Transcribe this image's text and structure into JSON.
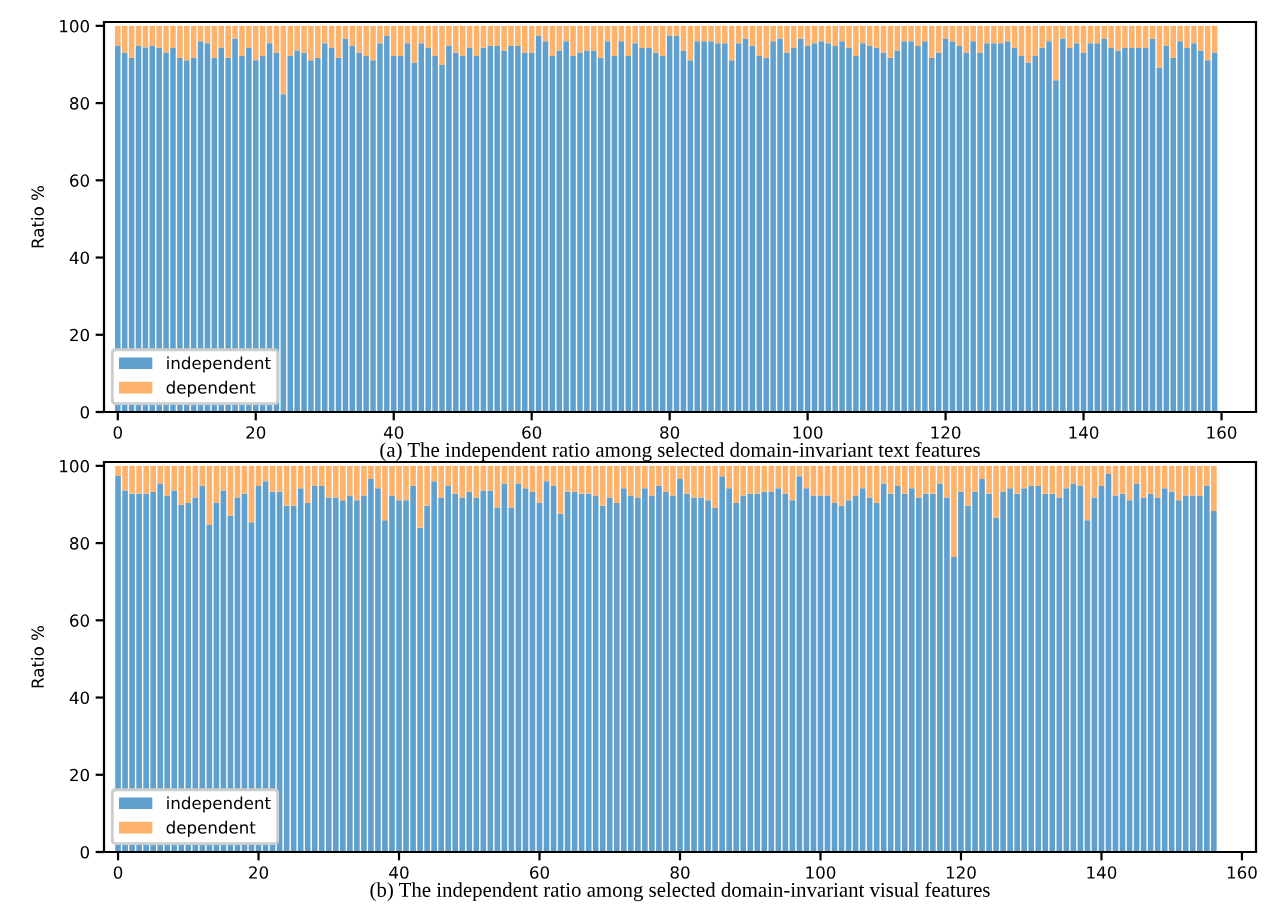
{
  "chart_data": [
    {
      "type": "bar",
      "stacked": true,
      "xlabel": "(a) The independent ratio among selected domain-invariant text features",
      "ylabel": "Ratio %",
      "x": [
        0,
        1,
        2,
        3,
        4,
        5,
        6,
        7,
        8,
        9,
        10,
        11,
        12,
        13,
        14,
        15,
        16,
        17,
        18,
        19,
        20,
        21,
        22,
        23,
        24,
        25,
        26,
        27,
        28,
        29,
        30,
        31,
        32,
        33,
        34,
        35,
        36,
        37,
        38,
        39,
        40,
        41,
        42,
        43,
        44,
        45,
        46,
        47,
        48,
        49,
        50,
        51,
        52,
        53,
        54,
        55,
        56,
        57,
        58,
        59,
        60,
        61,
        62,
        63,
        64,
        65,
        66,
        67,
        68,
        69,
        70,
        71,
        72,
        73,
        74,
        75,
        76,
        77,
        78,
        79,
        80,
        81,
        82,
        83,
        84,
        85,
        86,
        87,
        88,
        89,
        90,
        91,
        92,
        93,
        94,
        95,
        96,
        97,
        98,
        99,
        100,
        101,
        102,
        103,
        104,
        105,
        106,
        107,
        108,
        109,
        110,
        111,
        112,
        113,
        114,
        115,
        116,
        117,
        118,
        119,
        120,
        121,
        122,
        123,
        124,
        125,
        126,
        127,
        128,
        129,
        130,
        131,
        132,
        133,
        134,
        135,
        136,
        137,
        138,
        139,
        140,
        141,
        142,
        143,
        144,
        145,
        146,
        147,
        148,
        149,
        150,
        151,
        152,
        153,
        154,
        155,
        156,
        157,
        158,
        159
      ],
      "series": [
        {
          "name": "independent",
          "color": "#5fa0cf",
          "values": [
            94.8,
            93.1,
            91.7,
            94.8,
            94.4,
            94.8,
            94.3,
            93.1,
            94.3,
            91.7,
            91.1,
            91.7,
            96.0,
            95.5,
            91.7,
            94.3,
            91.7,
            96.7,
            92.2,
            94.3,
            91.1,
            92.2,
            95.5,
            93.1,
            82.3,
            92.2,
            93.6,
            93.1,
            91.1,
            91.7,
            95.5,
            94.3,
            91.7,
            96.7,
            94.8,
            93.1,
            92.2,
            91.1,
            95.5,
            97.4,
            92.2,
            92.2,
            95.5,
            90.5,
            95.5,
            94.3,
            92.2,
            89.9,
            94.8,
            93.1,
            92.2,
            94.3,
            92.2,
            94.3,
            94.8,
            94.8,
            93.6,
            94.8,
            94.8,
            93.1,
            93.1,
            97.4,
            96.0,
            92.2,
            93.6,
            96.0,
            92.2,
            93.1,
            93.6,
            93.6,
            91.7,
            96.0,
            92.2,
            96.0,
            92.2,
            95.5,
            94.3,
            94.3,
            93.1,
            92.2,
            97.4,
            97.4,
            93.6,
            91.1,
            96.0,
            96.0,
            96.0,
            95.5,
            95.5,
            91.1,
            95.5,
            96.7,
            94.8,
            92.2,
            91.7,
            96.0,
            96.7,
            93.1,
            94.3,
            96.7,
            94.8,
            95.5,
            96.0,
            95.5,
            94.8,
            96.0,
            94.3,
            92.2,
            95.5,
            94.8,
            94.3,
            93.1,
            91.7,
            93.6,
            96.0,
            96.0,
            94.8,
            96.0,
            91.7,
            93.1,
            96.7,
            96.0,
            94.8,
            93.1,
            96.0,
            93.1,
            95.5,
            95.5,
            95.5,
            96.0,
            94.3,
            92.2,
            90.5,
            92.2,
            94.3,
            96.0,
            85.9,
            96.7,
            94.3,
            95.5,
            93.1,
            95.5,
            95.5,
            96.7,
            94.3,
            93.6,
            94.3,
            94.3,
            94.3,
            94.3,
            96.7,
            89.2,
            94.8,
            91.7,
            96.0,
            94.3,
            95.5,
            93.6,
            91.1,
            93.1
          ]
        },
        {
          "name": "dependent",
          "color": "#ffb26b",
          "values": [
            5.2,
            6.9,
            8.3,
            5.2,
            5.6,
            5.2,
            5.7,
            6.9,
            5.7,
            8.3,
            8.9,
            8.3,
            4.0,
            4.5,
            8.3,
            5.7,
            8.3,
            3.3,
            7.8,
            5.7,
            8.9,
            7.8,
            4.5,
            6.9,
            17.7,
            7.8,
            6.4,
            6.9,
            8.9,
            8.3,
            4.5,
            5.7,
            8.3,
            3.3,
            5.2,
            6.9,
            7.8,
            8.9,
            4.5,
            2.6,
            7.8,
            7.8,
            4.5,
            9.5,
            4.5,
            5.7,
            7.8,
            10.1,
            5.2,
            6.9,
            7.8,
            5.7,
            7.8,
            5.7,
            5.2,
            5.2,
            6.4,
            5.2,
            5.2,
            6.9,
            6.9,
            2.6,
            4.0,
            7.8,
            6.4,
            4.0,
            7.8,
            6.9,
            6.4,
            6.4,
            8.3,
            4.0,
            7.8,
            4.0,
            7.8,
            4.5,
            5.7,
            5.7,
            6.9,
            7.8,
            2.6,
            2.6,
            6.4,
            8.9,
            4.0,
            4.0,
            4.0,
            4.5,
            4.5,
            8.9,
            4.5,
            3.3,
            5.2,
            7.8,
            8.3,
            4.0,
            3.3,
            6.9,
            5.7,
            3.3,
            5.2,
            4.5,
            4.0,
            4.5,
            5.2,
            4.0,
            5.7,
            7.8,
            4.5,
            5.2,
            5.7,
            6.9,
            8.3,
            6.4,
            4.0,
            4.0,
            5.2,
            4.0,
            8.3,
            6.9,
            3.3,
            4.0,
            5.2,
            6.9,
            4.0,
            6.9,
            4.5,
            4.5,
            4.5,
            4.0,
            5.7,
            7.8,
            9.5,
            7.8,
            5.7,
            4.0,
            14.1,
            3.3,
            5.7,
            4.5,
            6.9,
            4.5,
            4.5,
            3.3,
            5.7,
            6.4,
            5.7,
            5.7,
            5.7,
            5.7,
            3.3,
            10.8,
            5.2,
            8.3,
            4.0,
            5.7,
            4.5,
            6.4,
            8.9,
            6.9
          ]
        }
      ],
      "xlim": [
        -2,
        165
      ],
      "xticks": [
        0,
        20,
        40,
        60,
        80,
        100,
        120,
        140,
        160
      ],
      "ylim": [
        0,
        101
      ],
      "yticks": [
        0,
        20,
        40,
        60,
        80,
        100
      ],
      "legend": "bottom left",
      "grid": false
    },
    {
      "type": "bar",
      "stacked": true,
      "xlabel": "(b) The independent ratio among selected domain-invariant visual features",
      "ylabel": "Ratio %",
      "x": [
        0,
        1,
        2,
        3,
        4,
        5,
        6,
        7,
        8,
        9,
        10,
        11,
        12,
        13,
        14,
        15,
        16,
        17,
        18,
        19,
        20,
        21,
        22,
        23,
        24,
        25,
        26,
        27,
        28,
        29,
        30,
        31,
        32,
        33,
        34,
        35,
        36,
        37,
        38,
        39,
        40,
        41,
        42,
        43,
        44,
        45,
        46,
        47,
        48,
        49,
        50,
        51,
        52,
        53,
        54,
        55,
        56,
        57,
        58,
        59,
        60,
        61,
        62,
        63,
        64,
        65,
        66,
        67,
        68,
        69,
        70,
        71,
        72,
        73,
        74,
        75,
        76,
        77,
        78,
        79,
        80,
        81,
        82,
        83,
        84,
        85,
        86,
        87,
        88,
        89,
        90,
        91,
        92,
        93,
        94,
        95,
        96,
        97,
        98,
        99,
        100,
        101,
        102,
        103,
        104,
        105,
        106,
        107,
        108,
        109,
        110,
        111,
        112,
        113,
        114,
        115,
        116,
        117,
        118,
        119,
        120,
        121,
        122,
        123,
        124,
        125,
        126,
        127,
        128,
        129,
        130,
        131,
        132,
        133,
        134,
        135,
        136,
        137,
        138,
        139,
        140,
        141,
        142,
        143,
        144,
        145,
        146,
        147,
        148,
        149,
        150,
        151,
        152,
        153,
        154,
        155,
        156
      ],
      "series": [
        {
          "name": "independent",
          "color": "#5fa0cf",
          "values": [
            97.4,
            93.6,
            92.8,
            92.8,
            92.8,
            93.3,
            95.4,
            92.3,
            93.6,
            89.9,
            90.4,
            91.8,
            94.8,
            84.7,
            90.4,
            93.6,
            87.1,
            91.8,
            92.8,
            85.4,
            94.8,
            96.0,
            93.3,
            93.3,
            89.7,
            89.7,
            94.2,
            90.4,
            94.8,
            94.8,
            91.8,
            91.8,
            91.1,
            92.3,
            91.1,
            92.3,
            96.6,
            94.2,
            85.9,
            92.3,
            91.1,
            91.1,
            94.8,
            84.0,
            89.7,
            96.0,
            91.8,
            94.8,
            92.8,
            91.8,
            93.3,
            91.8,
            93.6,
            93.6,
            89.2,
            95.4,
            89.2,
            95.4,
            94.2,
            93.3,
            90.4,
            96.0,
            94.8,
            87.6,
            93.3,
            93.3,
            92.8,
            92.8,
            92.3,
            89.7,
            91.8,
            90.4,
            94.2,
            92.3,
            91.8,
            94.2,
            92.3,
            94.8,
            93.3,
            92.3,
            96.6,
            92.8,
            91.8,
            91.8,
            91.1,
            89.2,
            97.3,
            94.2,
            90.4,
            92.3,
            92.8,
            92.8,
            93.3,
            93.3,
            94.2,
            92.8,
            91.1,
            97.3,
            94.2,
            92.3,
            92.3,
            92.3,
            90.4,
            89.7,
            91.1,
            92.3,
            94.2,
            91.8,
            90.4,
            95.4,
            92.8,
            94.8,
            92.8,
            94.2,
            91.8,
            92.8,
            92.8,
            95.4,
            91.8,
            76.5,
            93.3,
            89.7,
            93.3,
            96.6,
            92.8,
            86.6,
            93.3,
            94.2,
            92.8,
            94.2,
            94.8,
            94.8,
            92.8,
            92.8,
            91.8,
            94.2,
            95.4,
            94.8,
            85.9,
            91.8,
            94.8,
            97.9,
            92.3,
            92.8,
            91.1,
            95.4,
            91.8,
            92.8,
            91.8,
            94.2,
            93.3,
            91.1,
            92.3,
            92.3,
            92.3,
            94.8,
            88.3
          ]
        },
        {
          "name": "dependent",
          "color": "#ffb26b",
          "values": [
            2.6,
            6.4,
            7.2,
            7.2,
            7.2,
            6.7,
            4.6,
            7.7,
            6.4,
            10.1,
            9.6,
            8.2,
            5.2,
            15.3,
            9.6,
            6.4,
            12.9,
            8.2,
            7.2,
            14.6,
            5.2,
            4.0,
            6.7,
            6.7,
            10.3,
            10.3,
            5.8,
            9.6,
            5.2,
            5.2,
            8.2,
            8.2,
            8.9,
            7.7,
            8.9,
            7.7,
            3.4,
            5.8,
            14.1,
            7.7,
            8.9,
            8.9,
            5.2,
            16.0,
            10.3,
            4.0,
            8.2,
            5.2,
            7.2,
            8.2,
            6.7,
            8.2,
            6.4,
            6.4,
            10.8,
            4.6,
            10.8,
            4.6,
            5.8,
            6.7,
            9.6,
            4.0,
            5.2,
            12.4,
            6.7,
            6.7,
            7.2,
            7.2,
            7.7,
            10.3,
            8.2,
            9.6,
            5.8,
            7.7,
            8.2,
            5.8,
            7.7,
            5.2,
            6.7,
            7.7,
            3.4,
            7.2,
            8.2,
            8.2,
            8.9,
            10.8,
            2.7,
            5.8,
            9.6,
            7.7,
            7.2,
            7.2,
            6.7,
            6.7,
            5.8,
            7.2,
            8.9,
            2.7,
            5.8,
            7.7,
            7.7,
            7.7,
            9.6,
            10.3,
            8.9,
            7.7,
            5.8,
            8.2,
            9.6,
            4.6,
            7.2,
            5.2,
            7.2,
            5.8,
            8.2,
            7.2,
            7.2,
            4.6,
            8.2,
            23.5,
            6.7,
            10.3,
            6.7,
            3.4,
            7.2,
            13.4,
            6.7,
            5.8,
            7.2,
            5.8,
            5.2,
            5.2,
            7.2,
            7.2,
            8.2,
            5.8,
            4.6,
            5.2,
            14.1,
            8.2,
            5.2,
            2.1,
            7.7,
            7.2,
            8.9,
            4.6,
            8.2,
            7.2,
            8.2,
            5.8,
            6.7,
            8.9,
            7.7,
            7.7,
            7.7,
            5.2,
            11.7
          ]
        }
      ],
      "xlim": [
        -2,
        162
      ],
      "xticks": [
        0,
        20,
        40,
        60,
        80,
        100,
        120,
        140,
        160
      ],
      "ylim": [
        0,
        101
      ],
      "yticks": [
        0,
        20,
        40,
        60,
        80,
        100
      ],
      "legend": "bottom left",
      "grid": false
    }
  ]
}
